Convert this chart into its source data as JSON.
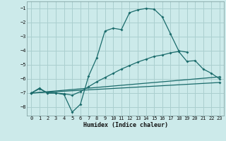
{
  "bg_color": "#cceaea",
  "grid_color": "#aacfcf",
  "line_color": "#1a6b6b",
  "xlabel": "Humidex (Indice chaleur)",
  "xlim": [
    -0.5,
    23.5
  ],
  "ylim": [
    -8.6,
    -0.5
  ],
  "yticks": [
    -8,
    -7,
    -6,
    -5,
    -4,
    -3,
    -2,
    -1
  ],
  "xticks": [
    0,
    1,
    2,
    3,
    4,
    5,
    6,
    7,
    8,
    9,
    10,
    11,
    12,
    13,
    14,
    15,
    16,
    17,
    18,
    19,
    20,
    21,
    22,
    23
  ],
  "series": [
    {
      "x": [
        0,
        1,
        2,
        3,
        4,
        5,
        6,
        7,
        8,
        9,
        10,
        11,
        12,
        13,
        14,
        15,
        16,
        17,
        18,
        19,
        20,
        21,
        22,
        23
      ],
      "y": [
        -7.0,
        -6.7,
        -7.0,
        -7.0,
        -7.1,
        -8.35,
        -7.8,
        -5.8,
        -4.5,
        -2.6,
        -2.4,
        -2.5,
        -1.3,
        -1.1,
        -1.0,
        -1.05,
        -1.6,
        -2.8,
        -4.0,
        -4.1,
        null,
        null,
        null,
        null
      ]
    },
    {
      "x": [
        0,
        1,
        2,
        3,
        4,
        5,
        6,
        7,
        8,
        9,
        10,
        11,
        12,
        13,
        14,
        15,
        16,
        17,
        18,
        19,
        20,
        21,
        22,
        23
      ],
      "y": [
        -7.0,
        -6.65,
        -7.0,
        -7.0,
        -7.05,
        -7.15,
        -6.9,
        -6.55,
        -6.2,
        -5.9,
        -5.6,
        -5.3,
        -5.05,
        -4.8,
        -4.6,
        -4.4,
        -4.3,
        -4.15,
        -4.05,
        -4.75,
        -4.7,
        -5.3,
        -5.6,
        -6.0
      ]
    },
    {
      "x": [
        0,
        23
      ],
      "y": [
        -7.0,
        -5.85
      ]
    },
    {
      "x": [
        0,
        23
      ],
      "y": [
        -7.0,
        -6.25
      ]
    }
  ]
}
